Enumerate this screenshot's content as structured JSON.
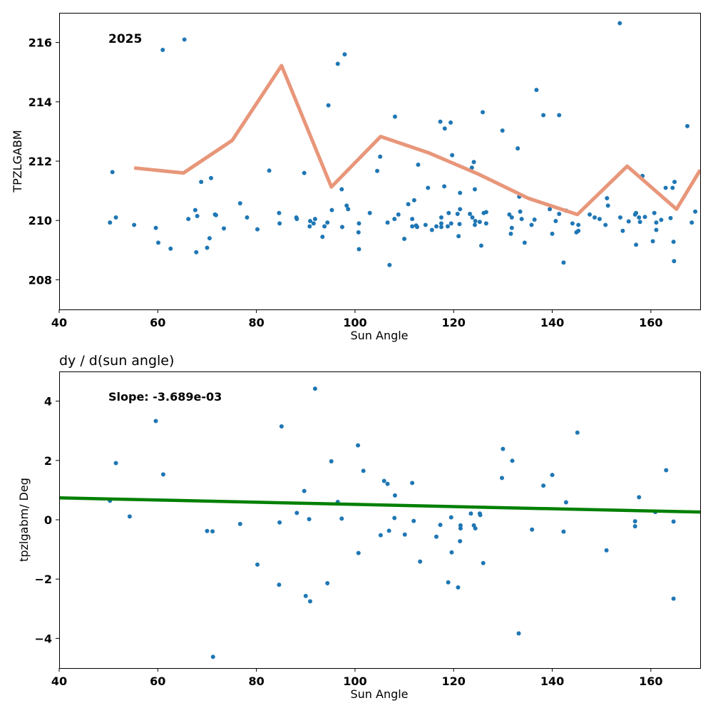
{
  "chart_data": [
    {
      "type": "scatter",
      "annotation": "2025",
      "xlabel": "Sun Angle",
      "ylabel": "TPZLGABM",
      "xlim": [
        40,
        170
      ],
      "ylim": [
        207,
        217
      ],
      "xticks": [
        "40",
        "60",
        "80",
        "100",
        "120",
        "140",
        "160"
      ],
      "yticks": [
        "208",
        "210",
        "212",
        "214",
        "216"
      ],
      "grid": false,
      "colors": {
        "points": "#1f77b4",
        "line": "#e8967a"
      },
      "series": [
        {
          "kind": "scatter",
          "points": [
            [
              50.3,
              209.93
            ],
            [
              50.8,
              211.63
            ],
            [
              51.5,
              210.1
            ],
            [
              55.2,
              209.85
            ],
            [
              59.6,
              209.75
            ],
            [
              60.1,
              209.25
            ],
            [
              61.0,
              215.75
            ],
            [
              62.6,
              209.05
            ],
            [
              65.4,
              216.1
            ],
            [
              66.2,
              210.05
            ],
            [
              67.6,
              210.35
            ],
            [
              67.8,
              208.93
            ],
            [
              68.0,
              210.15
            ],
            [
              68.8,
              211.3
            ],
            [
              70.0,
              209.08
            ],
            [
              70.5,
              209.4
            ],
            [
              70.8,
              211.43
            ],
            [
              71.6,
              210.2
            ],
            [
              71.8,
              210.18
            ],
            [
              73.4,
              209.73
            ],
            [
              76.7,
              210.58
            ],
            [
              78.1,
              210.1
            ],
            [
              80.2,
              209.7
            ],
            [
              82.6,
              211.68
            ],
            [
              84.6,
              210.25
            ],
            [
              84.7,
              209.9
            ],
            [
              88.1,
              210.1
            ],
            [
              88.2,
              210.05
            ],
            [
              89.7,
              211.6
            ],
            [
              90.8,
              209.8
            ],
            [
              90.9,
              209.98
            ],
            [
              91.6,
              209.9
            ],
            [
              91.9,
              210.05
            ],
            [
              93.4,
              209.45
            ],
            [
              93.8,
              209.8
            ],
            [
              94.4,
              209.93
            ],
            [
              94.6,
              213.88
            ],
            [
              95.3,
              210.35
            ],
            [
              96.5,
              215.28
            ],
            [
              97.3,
              211.05
            ],
            [
              97.4,
              209.78
            ],
            [
              97.9,
              215.6
            ],
            [
              98.3,
              210.5
            ],
            [
              98.6,
              210.38
            ],
            [
              100.7,
              209.6
            ],
            [
              100.8,
              209.9
            ],
            [
              100.8,
              209.03
            ],
            [
              103.0,
              210.25
            ],
            [
              104.5,
              211.67
            ],
            [
              105.1,
              212.15
            ],
            [
              106.6,
              209.93
            ],
            [
              107.0,
              208.5
            ],
            [
              108.0,
              210.05
            ],
            [
              108.1,
              213.5
            ],
            [
              108.8,
              210.2
            ],
            [
              110.0,
              209.38
            ],
            [
              110.8,
              210.55
            ],
            [
              111.6,
              210.05
            ],
            [
              111.6,
              209.8
            ],
            [
              112.0,
              210.68
            ],
            [
              112.4,
              209.83
            ],
            [
              112.6,
              209.78
            ],
            [
              112.8,
              211.88
            ],
            [
              114.3,
              209.85
            ],
            [
              114.8,
              211.1
            ],
            [
              115.6,
              209.68
            ],
            [
              116.5,
              209.8
            ],
            [
              117.3,
              213.33
            ],
            [
              117.5,
              210.1
            ],
            [
              117.5,
              209.9
            ],
            [
              117.5,
              209.78
            ],
            [
              118.1,
              211.15
            ],
            [
              118.2,
              213.1
            ],
            [
              118.8,
              209.8
            ],
            [
              119.0,
              210.25
            ],
            [
              119.4,
              213.3
            ],
            [
              119.5,
              209.9
            ],
            [
              119.7,
              212.2
            ],
            [
              120.8,
              210.22
            ],
            [
              121.0,
              209.47
            ],
            [
              121.3,
              210.38
            ],
            [
              121.2,
              209.88
            ],
            [
              121.3,
              210.93
            ],
            [
              123.3,
              210.22
            ],
            [
              123.7,
              211.78
            ],
            [
              123.8,
              210.1
            ],
            [
              124.1,
              211.97
            ],
            [
              124.3,
              209.85
            ],
            [
              124.4,
              209.98
            ],
            [
              124.3,
              211.05
            ],
            [
              125.3,
              209.95
            ],
            [
              125.6,
              209.15
            ],
            [
              125.9,
              213.65
            ],
            [
              126.1,
              210.25
            ],
            [
              126.6,
              209.9
            ],
            [
              126.6,
              210.28
            ],
            [
              129.9,
              213.03
            ],
            [
              131.3,
              210.2
            ],
            [
              131.6,
              209.55
            ],
            [
              131.8,
              210.1
            ],
            [
              131.8,
              209.75
            ],
            [
              133.0,
              212.43
            ],
            [
              133.3,
              210.8
            ],
            [
              133.5,
              210.3
            ],
            [
              133.8,
              210.05
            ],
            [
              134.4,
              209.25
            ],
            [
              135.8,
              209.85
            ],
            [
              136.4,
              210.03
            ],
            [
              136.8,
              214.4
            ],
            [
              138.2,
              213.55
            ],
            [
              139.5,
              210.38
            ],
            [
              140.0,
              209.55
            ],
            [
              140.7,
              209.98
            ],
            [
              141.4,
              210.22
            ],
            [
              141.4,
              213.55
            ],
            [
              142.3,
              208.58
            ],
            [
              142.8,
              210.33
            ],
            [
              144.1,
              209.9
            ],
            [
              144.9,
              209.6
            ],
            [
              145.3,
              209.65
            ],
            [
              145.3,
              209.85
            ],
            [
              147.6,
              210.2
            ],
            [
              148.6,
              210.1
            ],
            [
              149.6,
              210.05
            ],
            [
              150.8,
              209.85
            ],
            [
              151.1,
              210.75
            ],
            [
              151.3,
              210.5
            ],
            [
              153.7,
              216.65
            ],
            [
              153.8,
              210.1
            ],
            [
              154.3,
              209.65
            ],
            [
              155.5,
              209.97
            ],
            [
              156.8,
              210.2
            ],
            [
              157.0,
              209.18
            ],
            [
              157.0,
              210.25
            ],
            [
              157.6,
              210.1
            ],
            [
              157.8,
              209.95
            ],
            [
              158.3,
              211.5
            ],
            [
              158.8,
              210.12
            ],
            [
              160.4,
              209.3
            ],
            [
              160.7,
              210.25
            ],
            [
              161.1,
              209.68
            ],
            [
              161.1,
              209.93
            ],
            [
              162.1,
              210.02
            ],
            [
              163.0,
              211.1
            ],
            [
              164.0,
              210.08
            ],
            [
              164.4,
              211.1
            ],
            [
              164.6,
              209.28
            ],
            [
              164.7,
              208.63
            ],
            [
              164.8,
              211.3
            ],
            [
              167.4,
              213.18
            ],
            [
              168.3,
              209.93
            ],
            [
              169.0,
              210.3
            ]
          ]
        },
        {
          "kind": "line",
          "points": [
            [
              55.2,
              211.77
            ],
            [
              65.2,
              211.6
            ],
            [
              75.1,
              212.7
            ],
            [
              85.1,
              215.22
            ],
            [
              95.2,
              211.13
            ],
            [
              105.2,
              212.83
            ],
            [
              115.1,
              212.27
            ],
            [
              125.2,
              211.55
            ],
            [
              135.1,
              210.75
            ],
            [
              145.1,
              210.2
            ],
            [
              155.2,
              211.83
            ],
            [
              165.2,
              210.38
            ],
            [
              170.0,
              211.7
            ]
          ]
        }
      ]
    },
    {
      "type": "scatter",
      "title": "dy / d(sun angle)",
      "annotation": "Slope: -3.689e-03",
      "xlabel": "Sun Angle",
      "ylabel": "tpzlgabm/ Deg",
      "xlim": [
        40,
        170
      ],
      "ylim": [
        -5,
        5
      ],
      "xticks": [
        "40",
        "60",
        "80",
        "100",
        "120",
        "140",
        "160"
      ],
      "yticks": [
        "−4",
        "−2",
        "0",
        "2",
        "4"
      ],
      "grid": false,
      "colors": {
        "points": "#1f77b4",
        "line": "#008000"
      },
      "series": [
        {
          "kind": "scatter",
          "points": [
            [
              50.3,
              0.64
            ],
            [
              51.5,
              1.91
            ],
            [
              54.3,
              0.11
            ],
            [
              59.6,
              3.33
            ],
            [
              61.1,
              1.53
            ],
            [
              70.0,
              -0.38
            ],
            [
              71.1,
              -0.39
            ],
            [
              71.2,
              -4.62
            ],
            [
              76.7,
              -0.14
            ],
            [
              80.2,
              -1.51
            ],
            [
              84.6,
              -2.19
            ],
            [
              84.7,
              -0.09
            ],
            [
              85.1,
              3.15
            ],
            [
              88.2,
              0.23
            ],
            [
              89.7,
              0.97
            ],
            [
              90.0,
              -2.57
            ],
            [
              90.7,
              0.02
            ],
            [
              90.9,
              -2.75
            ],
            [
              91.9,
              4.42
            ],
            [
              94.4,
              -2.14
            ],
            [
              95.2,
              1.97
            ],
            [
              96.5,
              0.6
            ],
            [
              97.3,
              0.04
            ],
            [
              100.6,
              2.51
            ],
            [
              100.7,
              -1.12
            ],
            [
              101.7,
              1.65
            ],
            [
              105.2,
              -0.52
            ],
            [
              105.9,
              1.31
            ],
            [
              106.6,
              1.21
            ],
            [
              106.9,
              -0.37
            ],
            [
              108.0,
              0.06
            ],
            [
              108.1,
              0.82
            ],
            [
              110.1,
              -0.5
            ],
            [
              111.6,
              1.24
            ],
            [
              111.9,
              -0.04
            ],
            [
              113.2,
              -1.41
            ],
            [
              116.5,
              -0.57
            ],
            [
              117.3,
              -0.17
            ],
            [
              118.9,
              -2.11
            ],
            [
              119.5,
              0.08
            ],
            [
              119.6,
              -1.1
            ],
            [
              120.9,
              -2.28
            ],
            [
              121.3,
              -0.72
            ],
            [
              121.4,
              -0.19
            ],
            [
              121.4,
              -0.29
            ],
            [
              123.5,
              0.21
            ],
            [
              124.1,
              -0.19
            ],
            [
              124.4,
              -0.29
            ],
            [
              125.3,
              0.21
            ],
            [
              125.4,
              0.16
            ],
            [
              126.0,
              -1.46
            ],
            [
              129.8,
              1.41
            ],
            [
              130.0,
              2.39
            ],
            [
              131.9,
              1.99
            ],
            [
              133.2,
              -3.83
            ],
            [
              135.9,
              -0.33
            ],
            [
              138.2,
              1.15
            ],
            [
              140.0,
              1.51
            ],
            [
              142.3,
              -0.4
            ],
            [
              142.8,
              0.59
            ],
            [
              145.1,
              2.94
            ],
            [
              151.0,
              -1.03
            ],
            [
              156.8,
              -0.05
            ],
            [
              156.8,
              -0.22
            ],
            [
              157.6,
              0.76
            ],
            [
              160.9,
              0.26
            ],
            [
              163.1,
              1.67
            ],
            [
              164.6,
              -0.06
            ],
            [
              164.6,
              -2.66
            ]
          ]
        },
        {
          "kind": "line",
          "points": [
            [
              40,
              0.74
            ],
            [
              170,
              0.26
            ]
          ]
        }
      ]
    }
  ]
}
